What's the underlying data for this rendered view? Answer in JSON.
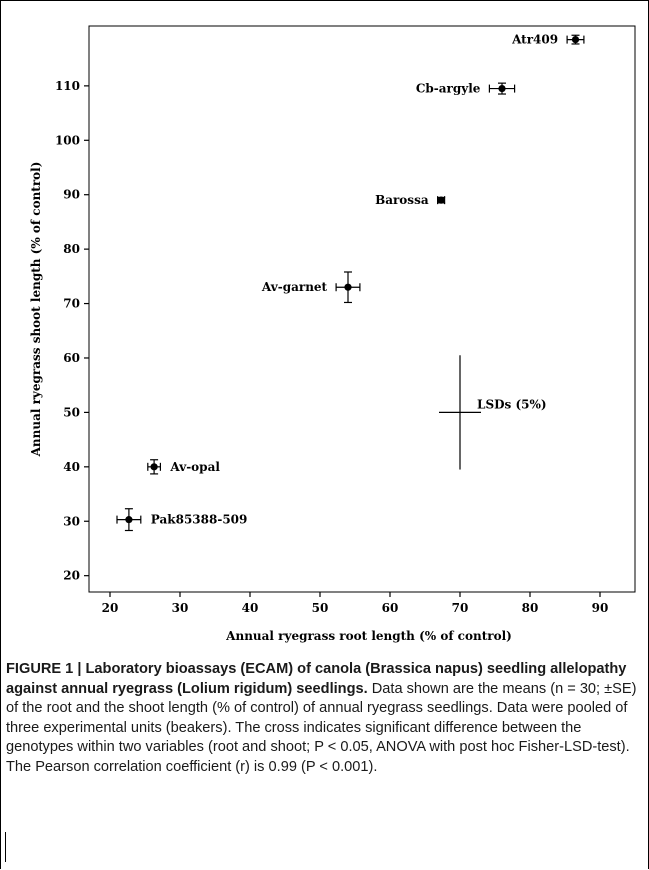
{
  "chart_data": {
    "type": "scatter",
    "xlabel": "Annual ryegrass root length (% of control)",
    "ylabel": "Annual ryegrass shoot length (% of control)",
    "xlim": [
      17,
      95
    ],
    "ylim": [
      17,
      121
    ],
    "xticks": [
      20,
      30,
      40,
      50,
      60,
      70,
      80,
      90
    ],
    "yticks": [
      20,
      30,
      40,
      50,
      60,
      70,
      80,
      90,
      100,
      110
    ],
    "points": [
      {
        "label": "Atr409",
        "x": 86.5,
        "y": 118.5,
        "xerr": 1.2,
        "yerr": 0.8,
        "label_side": "left"
      },
      {
        "label": "Cb-argyle",
        "x": 76.0,
        "y": 109.5,
        "xerr": 1.8,
        "yerr": 1.0,
        "label_side": "left"
      },
      {
        "label": "Barossa",
        "x": 67.3,
        "y": 89.0,
        "xerr": 0.5,
        "yerr": 0.5,
        "label_side": "left"
      },
      {
        "label": "Av-garnet",
        "x": 54.0,
        "y": 73.0,
        "xerr": 1.7,
        "yerr": 2.8,
        "label_side": "left"
      },
      {
        "label": "Av-opal",
        "x": 26.3,
        "y": 40.0,
        "xerr": 0.9,
        "yerr": 1.3,
        "label_side": "right"
      },
      {
        "label": "Pak85388-509",
        "x": 22.7,
        "y": 30.3,
        "xerr": 1.7,
        "yerr": 2.0,
        "label_side": "right"
      }
    ],
    "lsd_cross": {
      "label": "LSDs (5%)",
      "x": 70.0,
      "y": 50.0,
      "x_half": 3.0,
      "y_half": 10.5
    },
    "grid": false,
    "legend": "none"
  },
  "caption": {
    "lead": "FIGURE 1 | Laboratory bioassays (ECAM) of canola (Brassica napus) seedling allelopathy against annual ryegrass (Lolium rigidum) seedlings.",
    "body": " Data shown are the means (n = 30; ±SE) of the root and the shoot length (% of control) of annual ryegrass seedlings. Data were pooled of three experimental units (beakers). The cross indicates significant difference between the genotypes within two variables (root and shoot; P < 0.05, ANOVA with post hoc Fisher-LSD-test). The Pearson correlation coefficient (r) is 0.99 (P < 0.001)."
  }
}
